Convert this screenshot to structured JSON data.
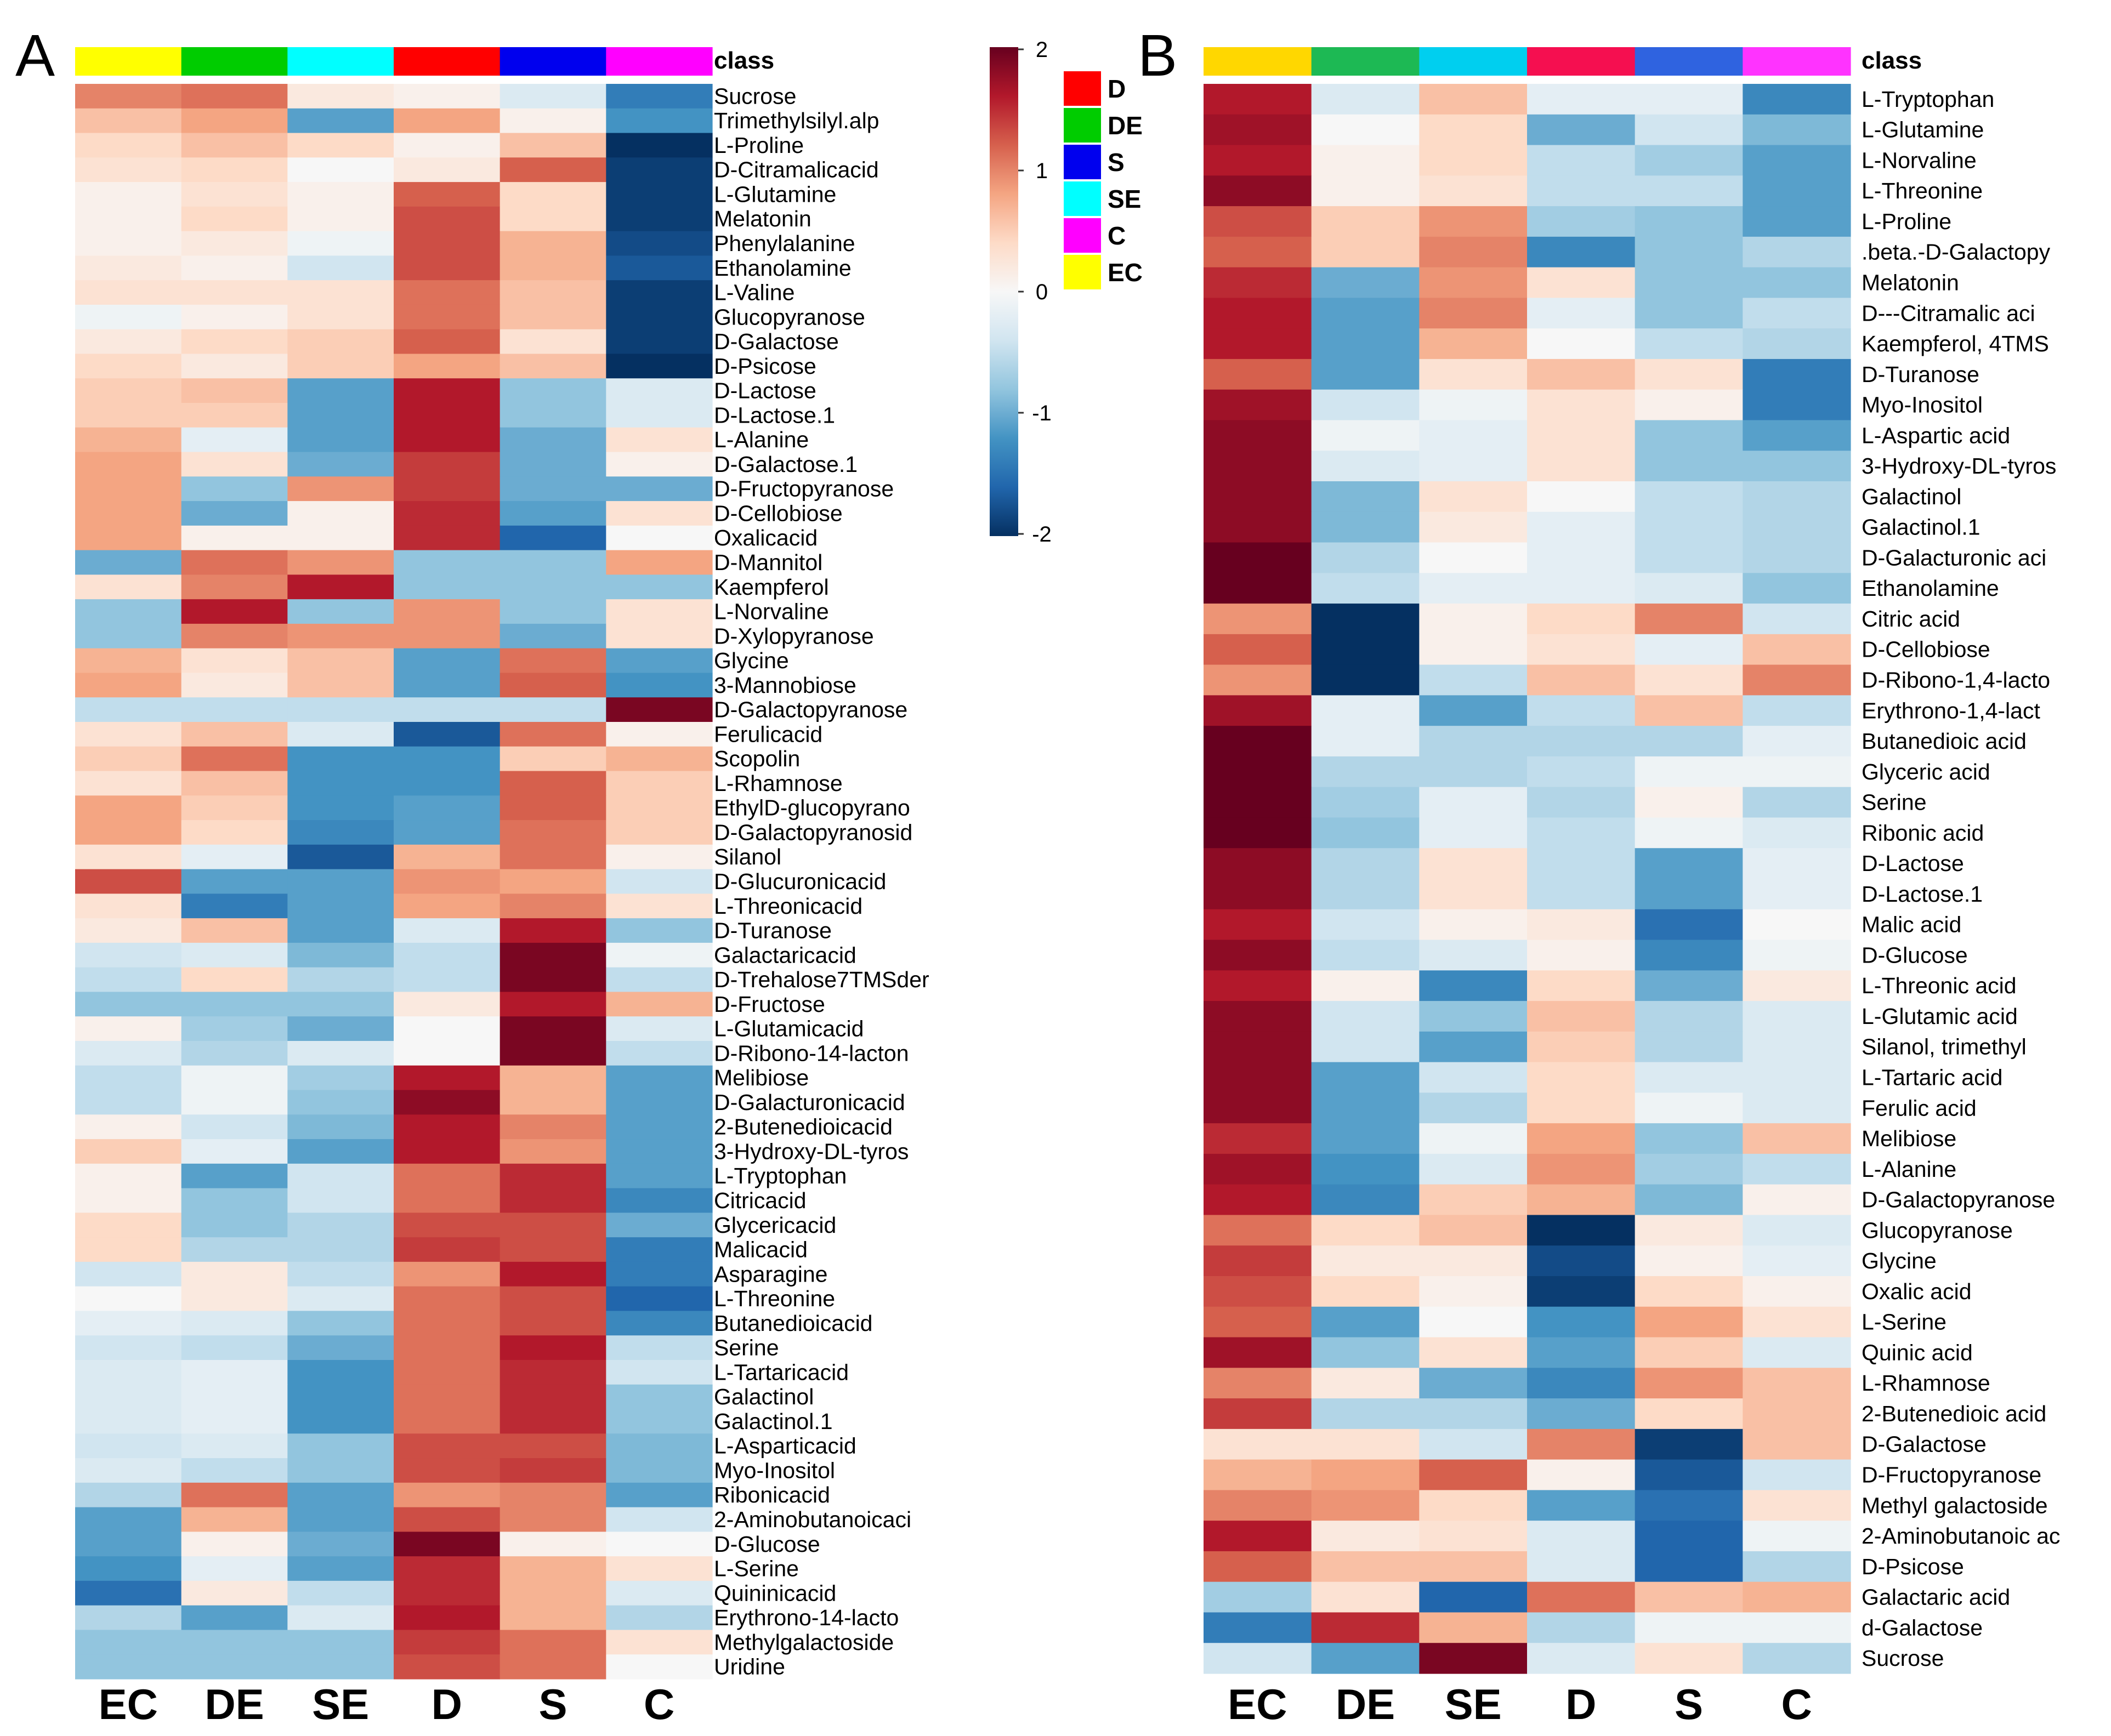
{
  "chart_data": [
    {
      "type": "heatmap",
      "panel_label": "A",
      "class_title": "class",
      "columns": [
        "EC",
        "DE",
        "SE",
        "D",
        "S",
        "C"
      ],
      "column_classes": [
        "EC",
        "DE",
        "SE",
        "D",
        "S",
        "C"
      ],
      "rows": [
        "Sucrose",
        "Trimethylsilyl.alp",
        "L-Proline",
        "D-Citramalicacid",
        "L-Glutamine",
        "Melatonin",
        "Phenylalanine",
        "Ethanolamine",
        "L-Valine",
        "Glucopyranose",
        "D-Galactose",
        "D-Psicose",
        "D-Lactose",
        "D-Lactose.1",
        "L-Alanine",
        "D-Galactose.1",
        "D-Fructopyranose",
        "D-Cellobiose",
        "Oxalicacid",
        "D-Mannitol",
        "Kaempferol",
        "L-Norvaline",
        "D-Xylopyranose",
        "Glycine",
        "3-Mannobiose",
        "D-Galactopyranose",
        "Ferulicacid",
        "Scopolin",
        "L-Rhamnose",
        "EthylD-glucopyrano",
        "D-Galactopyranosid",
        "Silanol",
        "D-Glucuronicacid",
        "L-Threonicacid",
        "D-Turanose",
        "Galactaricacid",
        "D-Trehalose7TMSder",
        "D-Fructose",
        "L-Glutamicacid",
        "D-Ribono-14-lacton",
        "Melibiose",
        "D-Galacturonicacid",
        "2-Butenedioicacid",
        "3-Hydroxy-DL-tyros",
        "L-Tryptophan",
        "Citricacid",
        "Glycericacid",
        "Malicacid",
        "Asparagine",
        "L-Threonine",
        "Butanedioicacid",
        "Serine",
        "L-Tartaricacid",
        "Galactinol",
        "Galactinol.1",
        "L-Asparticacid",
        "Myo-Inositol",
        "Ribonicacid",
        "2-Aminobutanoicaci",
        "D-Glucose",
        "L-Serine",
        "Quininicacid",
        "Erythrono-14-lacto",
        "Methylgalactoside",
        "Uridine"
      ],
      "values": [
        [
          1.0,
          1.1,
          0.2,
          0.1,
          -0.3,
          -1.4
        ],
        [
          0.6,
          0.8,
          -1.1,
          0.8,
          0.1,
          -1.2
        ],
        [
          0.4,
          0.6,
          0.4,
          0.1,
          0.6,
          -2.0
        ],
        [
          0.3,
          0.4,
          0.0,
          0.2,
          1.2,
          -1.9
        ],
        [
          0.1,
          0.3,
          0.1,
          1.2,
          0.4,
          -1.9
        ],
        [
          0.1,
          0.4,
          0.1,
          1.3,
          0.4,
          -1.9
        ],
        [
          0.1,
          0.2,
          -0.1,
          1.3,
          0.7,
          -1.8
        ],
        [
          0.2,
          0.1,
          -0.4,
          1.3,
          0.7,
          -1.7
        ],
        [
          0.3,
          0.3,
          0.3,
          1.1,
          0.6,
          -1.9
        ],
        [
          -0.1,
          0.1,
          0.3,
          1.1,
          0.6,
          -1.9
        ],
        [
          0.2,
          0.4,
          0.5,
          1.2,
          0.3,
          -1.9
        ],
        [
          0.4,
          0.2,
          0.5,
          0.8,
          0.6,
          -2.0
        ],
        [
          0.5,
          0.6,
          -1.1,
          1.6,
          -0.8,
          -0.3
        ],
        [
          0.5,
          0.5,
          -1.1,
          1.6,
          -0.8,
          -0.3
        ],
        [
          0.7,
          -0.2,
          -1.1,
          1.6,
          -1.0,
          0.3
        ],
        [
          0.8,
          0.3,
          -1.0,
          1.4,
          -1.0,
          0.1
        ],
        [
          0.8,
          -0.8,
          0.9,
          1.4,
          -1.0,
          -1.0
        ],
        [
          0.8,
          -1.0,
          0.1,
          1.5,
          -1.1,
          0.3
        ],
        [
          0.8,
          0.1,
          0.1,
          1.5,
          -1.6,
          0.0
        ],
        [
          -1.0,
          1.1,
          0.9,
          -0.8,
          -0.8,
          0.8
        ],
        [
          0.3,
          1.0,
          1.6,
          -0.8,
          -0.8,
          -0.8
        ],
        [
          -0.8,
          1.6,
          -0.8,
          0.9,
          -0.8,
          0.3
        ],
        [
          -0.8,
          1.0,
          0.9,
          0.9,
          -1.0,
          0.3
        ],
        [
          0.7,
          0.3,
          0.6,
          -1.1,
          1.1,
          -1.1
        ],
        [
          0.8,
          0.2,
          0.6,
          -1.1,
          1.2,
          -1.2
        ],
        [
          -0.5,
          -0.5,
          -0.5,
          -0.5,
          -0.5,
          1.9
        ],
        [
          0.3,
          0.6,
          -0.3,
          -1.7,
          1.1,
          0.1
        ],
        [
          0.5,
          1.1,
          -1.2,
          -1.2,
          0.5,
          0.7
        ],
        [
          0.3,
          0.6,
          -1.2,
          -1.2,
          1.2,
          0.5
        ],
        [
          0.8,
          0.5,
          -1.2,
          -1.1,
          1.2,
          0.5
        ],
        [
          0.8,
          0.4,
          -1.3,
          -1.1,
          1.1,
          0.5
        ],
        [
          0.3,
          -0.2,
          -1.7,
          0.7,
          1.1,
          0.1
        ],
        [
          1.3,
          -1.1,
          -1.1,
          0.9,
          0.8,
          -0.4
        ],
        [
          0.3,
          -1.4,
          -1.1,
          0.8,
          1.0,
          0.3
        ],
        [
          0.2,
          0.6,
          -1.1,
          -0.3,
          1.6,
          -0.8
        ],
        [
          -0.4,
          -0.3,
          -0.9,
          -0.5,
          1.9,
          -0.1
        ],
        [
          -0.5,
          0.4,
          -0.6,
          -0.5,
          1.9,
          -0.5
        ],
        [
          -0.8,
          -0.8,
          -0.8,
          0.2,
          1.6,
          0.7
        ],
        [
          0.1,
          -0.7,
          -1.0,
          0.0,
          1.9,
          -0.3
        ],
        [
          -0.3,
          -0.6,
          -0.3,
          0.0,
          1.9,
          -0.5
        ],
        [
          -0.5,
          -0.1,
          -0.7,
          1.6,
          0.7,
          -1.1
        ],
        [
          -0.5,
          -0.1,
          -0.8,
          1.8,
          0.7,
          -1.1
        ],
        [
          0.1,
          -0.4,
          -0.9,
          1.6,
          1.0,
          -1.1
        ],
        [
          0.5,
          -0.2,
          -1.1,
          1.6,
          0.9,
          -1.1
        ],
        [
          0.1,
          -1.1,
          -0.4,
          1.1,
          1.5,
          -1.1
        ],
        [
          0.1,
          -0.8,
          -0.4,
          1.1,
          1.5,
          -1.3
        ],
        [
          0.4,
          -0.8,
          -0.6,
          1.3,
          1.3,
          -1.0
        ],
        [
          0.4,
          -0.6,
          -0.6,
          1.4,
          1.3,
          -1.4
        ],
        [
          -0.4,
          0.2,
          -0.5,
          0.9,
          1.6,
          -1.4
        ],
        [
          0.0,
          0.2,
          -0.3,
          1.1,
          1.3,
          -1.6
        ],
        [
          -0.2,
          -0.3,
          -0.8,
          1.1,
          1.3,
          -1.3
        ],
        [
          -0.4,
          -0.5,
          -1.0,
          1.1,
          1.6,
          -0.5
        ],
        [
          -0.3,
          -0.2,
          -1.2,
          1.1,
          1.5,
          -0.4
        ],
        [
          -0.3,
          -0.2,
          -1.2,
          1.1,
          1.5,
          -0.8
        ],
        [
          -0.3,
          -0.2,
          -1.2,
          1.1,
          1.5,
          -0.8
        ],
        [
          -0.4,
          -0.3,
          -0.8,
          1.3,
          1.3,
          -0.9
        ],
        [
          -0.3,
          -0.5,
          -0.8,
          1.3,
          1.4,
          -0.9
        ],
        [
          -0.6,
          1.1,
          -1.1,
          0.9,
          1.0,
          -1.1
        ],
        [
          -1.1,
          0.7,
          -1.1,
          1.3,
          1.0,
          -0.4
        ],
        [
          -1.1,
          0.1,
          -1.0,
          1.9,
          0.1,
          0.0
        ],
        [
          -1.2,
          -0.2,
          -1.1,
          1.5,
          0.7,
          0.3
        ],
        [
          -1.5,
          0.2,
          -0.5,
          1.5,
          0.7,
          -0.3
        ],
        [
          -0.6,
          -1.1,
          -0.3,
          1.6,
          0.7,
          -0.6
        ],
        [
          -0.8,
          -0.8,
          -0.8,
          1.4,
          1.1,
          0.3
        ],
        [
          -0.8,
          -0.8,
          -0.8,
          1.3,
          1.1,
          0.0
        ]
      ],
      "colorbar_range": [
        -2,
        2
      ],
      "colorbar_ticks": [
        "2",
        "1",
        "0",
        "-1",
        "-2"
      ]
    },
    {
      "type": "heatmap",
      "panel_label": "B",
      "class_title": "class",
      "columns": [
        "EC",
        "DE",
        "SE",
        "D",
        "S",
        "C"
      ],
      "column_classes": [
        "EC",
        "DE",
        "SE",
        "D",
        "S",
        "C"
      ],
      "rows": [
        "L-Tryptophan",
        "L-Glutamine",
        "L-Norvaline",
        "L-Threonine",
        "L-Proline",
        ".beta.-D-Galactopy",
        "Melatonin",
        "D---Citramalic aci",
        "Kaempferol, 4TMS",
        "D-Turanose",
        "Myo-Inositol",
        "L-Aspartic acid",
        "3-Hydroxy-DL-tyros",
        "Galactinol",
        "Galactinol.1",
        "D-Galacturonic aci",
        "Ethanolamine",
        "Citric acid",
        "D-Cellobiose",
        "D-Ribono-1,4-lacto",
        "Erythrono-1,4-lact",
        "Butanedioic acid",
        "Glyceric acid",
        "Serine",
        "Ribonic acid",
        "D-Lactose",
        "D-Lactose.1",
        "Malic acid",
        "D-Glucose",
        "L-Threonic acid",
        "L-Glutamic acid",
        "Silanol, trimethyl",
        "L-Tartaric acid",
        "Ferulic acid",
        "Melibiose",
        "L-Alanine",
        "D-Galactopyranose",
        "Glucopyranose",
        "Glycine",
        "Oxalic acid",
        "L-Serine",
        "Quinic acid",
        "L-Rhamnose",
        "2-Butenedioic acid",
        "D-Galactose",
        "D-Fructopyranose",
        "Methyl galactoside",
        "2-Aminobutanoic ac",
        "D-Psicose",
        "Galactaric acid",
        "d-Galactose",
        "Sucrose"
      ],
      "values": [
        [
          1.6,
          -0.3,
          0.6,
          -0.2,
          -0.2,
          -1.3
        ],
        [
          1.7,
          0.0,
          0.4,
          -1.0,
          -0.4,
          -0.9
        ],
        [
          1.6,
          0.1,
          0.4,
          -0.5,
          -0.7,
          -1.1
        ],
        [
          1.8,
          0.1,
          0.3,
          -0.5,
          -0.5,
          -1.1
        ],
        [
          1.3,
          0.5,
          0.9,
          -0.7,
          -0.8,
          -1.1
        ],
        [
          1.2,
          0.5,
          1.0,
          -1.3,
          -0.8,
          -0.6
        ],
        [
          1.5,
          -1.0,
          0.9,
          0.3,
          -0.8,
          -0.8
        ],
        [
          1.6,
          -1.1,
          1.0,
          -0.2,
          -0.8,
          -0.5
        ],
        [
          1.6,
          -1.1,
          0.7,
          0.0,
          -0.5,
          -0.6
        ],
        [
          1.2,
          -1.1,
          0.3,
          0.6,
          0.3,
          -1.4
        ],
        [
          1.7,
          -0.4,
          -0.1,
          0.3,
          0.1,
          -1.4
        ],
        [
          1.8,
          -0.1,
          -0.2,
          0.3,
          -0.8,
          -1.1
        ],
        [
          1.8,
          -0.3,
          -0.2,
          0.3,
          -0.8,
          -0.8
        ],
        [
          1.8,
          -0.9,
          0.3,
          0.0,
          -0.5,
          -0.6
        ],
        [
          1.8,
          -0.9,
          0.2,
          -0.2,
          -0.5,
          -0.6
        ],
        [
          2.0,
          -0.6,
          0.0,
          -0.2,
          -0.5,
          -0.6
        ],
        [
          2.0,
          -0.5,
          -0.2,
          -0.2,
          -0.3,
          -0.8
        ],
        [
          0.9,
          -2.0,
          0.1,
          0.4,
          1.0,
          -0.4
        ],
        [
          1.2,
          -2.0,
          0.1,
          0.3,
          -0.2,
          0.6
        ],
        [
          0.9,
          -2.0,
          -0.5,
          0.6,
          0.3,
          1.0
        ],
        [
          1.7,
          -0.2,
          -1.1,
          -0.5,
          0.6,
          -0.5
        ],
        [
          2.0,
          -0.2,
          -0.6,
          -0.6,
          -0.6,
          -0.2
        ],
        [
          2.0,
          -0.6,
          -0.6,
          -0.5,
          -0.1,
          -0.1
        ],
        [
          2.0,
          -0.7,
          -0.2,
          -0.6,
          0.1,
          -0.6
        ],
        [
          2.0,
          -0.8,
          -0.2,
          -0.5,
          -0.1,
          -0.3
        ],
        [
          1.8,
          -0.6,
          0.3,
          -0.5,
          -1.1,
          -0.2
        ],
        [
          1.8,
          -0.6,
          0.3,
          -0.5,
          -1.1,
          -0.2
        ],
        [
          1.6,
          -0.4,
          0.1,
          0.2,
          -1.5,
          0.0
        ],
        [
          1.8,
          -0.5,
          -0.3,
          0.1,
          -1.3,
          -0.1
        ],
        [
          1.6,
          0.1,
          -1.3,
          0.4,
          -1.0,
          0.2
        ],
        [
          1.8,
          -0.4,
          -0.8,
          0.6,
          -0.6,
          -0.3
        ],
        [
          1.8,
          -0.4,
          -1.1,
          0.5,
          -0.6,
          -0.3
        ],
        [
          1.8,
          -1.1,
          -0.4,
          0.4,
          -0.3,
          -0.3
        ],
        [
          1.8,
          -1.1,
          -0.6,
          0.4,
          -0.1,
          -0.3
        ],
        [
          1.5,
          -1.1,
          -0.1,
          0.8,
          -0.8,
          0.6
        ],
        [
          1.7,
          -1.2,
          -0.3,
          0.9,
          -0.7,
          -0.5
        ],
        [
          1.6,
          -1.3,
          0.5,
          0.7,
          -0.9,
          0.1
        ],
        [
          1.1,
          0.4,
          0.6,
          -2.0,
          0.2,
          -0.3
        ],
        [
          1.4,
          0.2,
          0.2,
          -1.8,
          0.1,
          -0.2
        ],
        [
          1.3,
          0.4,
          0.1,
          -1.9,
          0.4,
          0.1
        ],
        [
          1.2,
          -1.1,
          0.0,
          -1.2,
          0.8,
          0.3
        ],
        [
          1.7,
          -0.8,
          0.3,
          -1.1,
          0.5,
          -0.3
        ],
        [
          1.0,
          0.2,
          -1.0,
          -1.3,
          0.9,
          0.6
        ],
        [
          1.4,
          -0.6,
          -0.6,
          -1.0,
          0.4,
          0.6
        ],
        [
          0.3,
          0.3,
          -0.4,
          1.0,
          -1.9,
          0.6
        ],
        [
          0.7,
          0.8,
          1.2,
          0.1,
          -1.7,
          -0.4
        ],
        [
          1.0,
          0.9,
          0.4,
          -1.1,
          -1.5,
          0.3
        ],
        [
          1.6,
          0.2,
          0.3,
          -0.3,
          -1.6,
          -0.1
        ],
        [
          1.2,
          0.6,
          0.6,
          -0.3,
          -1.6,
          -0.6
        ],
        [
          -0.7,
          0.3,
          -1.6,
          1.1,
          0.6,
          0.7
        ],
        [
          -1.4,
          1.5,
          0.7,
          -0.6,
          -0.1,
          -0.1
        ],
        [
          -0.4,
          -1.1,
          1.9,
          -0.3,
          0.3,
          -0.6
        ]
      ],
      "colorbar_range": [
        -2,
        2
      ],
      "colorbar_ticks": [
        "2",
        "1",
        "0",
        "-1",
        "-2"
      ]
    }
  ],
  "legend": {
    "classes": [
      {
        "name": "D",
        "color": "#ff0000"
      },
      {
        "name": "DE",
        "color": "#00cc00"
      },
      {
        "name": "S",
        "color": "#0000ee"
      },
      {
        "name": "SE",
        "color": "#00ffff"
      },
      {
        "name": "C",
        "color": "#ff00ff"
      },
      {
        "name": "EC",
        "color": "#ffff00"
      }
    ]
  },
  "class_colors": {
    "A": {
      "EC": "#ffff00",
      "DE": "#00cc00",
      "SE": "#00ffff",
      "D": "#ff0000",
      "S": "#0000ee",
      "C": "#ff00ff"
    },
    "B": {
      "EC": "#ffd700",
      "DE": "#1db954",
      "SE": "#00cfef",
      "D": "#f50f50",
      "S": "#2f63e0",
      "C": "#ff33ff"
    }
  },
  "colorscale": [
    "#053061",
    "#2166ac",
    "#4393c3",
    "#92c5de",
    "#d1e5f0",
    "#f7f7f7",
    "#fddbc7",
    "#f4a582",
    "#d6604d",
    "#b2182b",
    "#67001f"
  ]
}
